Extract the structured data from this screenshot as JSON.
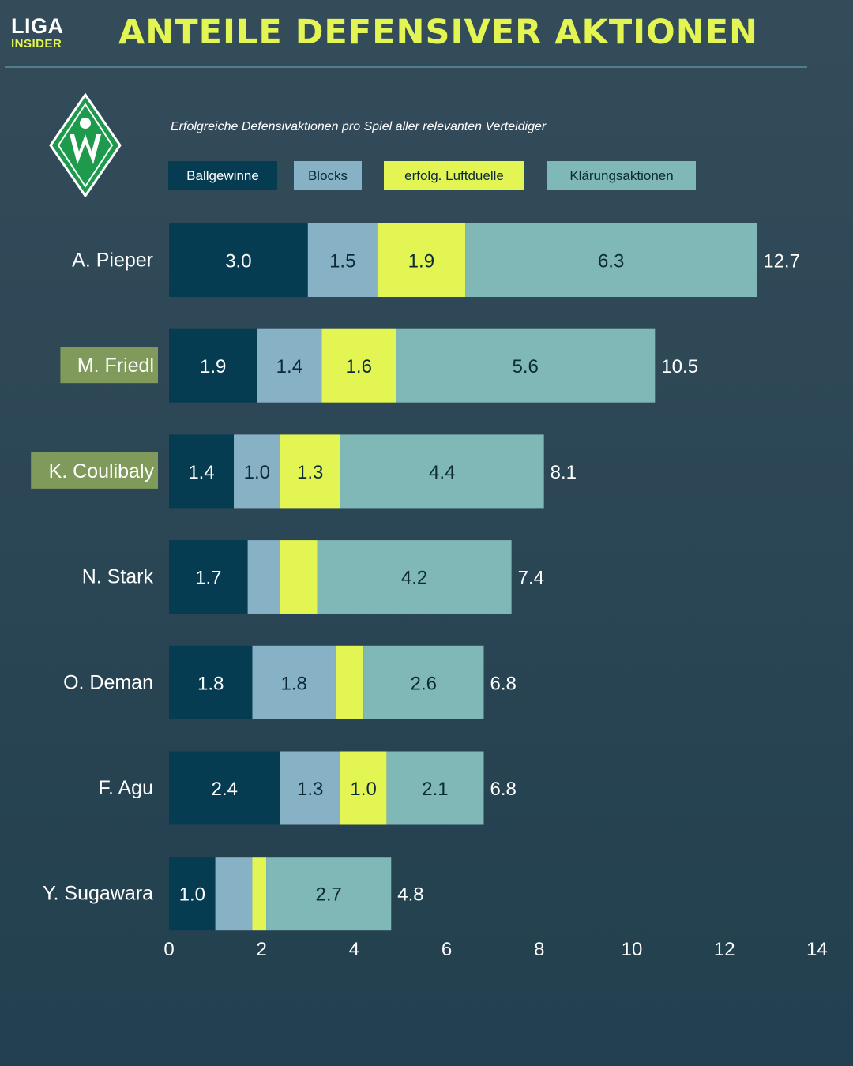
{
  "brand": {
    "line1": "LIGA",
    "line2": "INSIDER"
  },
  "header": {
    "title": "ANTEILE DEFENSIVER AKTIONEN"
  },
  "crest": {
    "icon": "werder-bremen-crest-icon",
    "color": "#1d9a4c"
  },
  "colors": {
    "ballgewinne": "#053c51",
    "blocks": "#87b2c5",
    "luftduelle": "#e3f553",
    "klaerung": "#80b8b7",
    "highlight": "#7f9a5b",
    "accent": "#e3f553"
  },
  "chart_data": {
    "type": "bar",
    "orientation": "horizontal",
    "stacked": true,
    "subtitle": "Erfolgreiche Defensivaktionen pro Spiel aller relevanten Verteidiger",
    "categories": [
      "A. Pieper",
      "M. Friedl",
      "K. Coulibaly",
      "N. Stark",
      "O. Deman",
      "F. Agu",
      "Y. Sugawara"
    ],
    "highlighted": [
      "M. Friedl",
      "K. Coulibaly"
    ],
    "series": [
      {
        "name": "Ballgewinne",
        "values": [
          3.0,
          1.9,
          1.4,
          1.7,
          1.8,
          2.4,
          1.0
        ],
        "labels": [
          "3.0",
          "1.9",
          "1.4",
          "1.7",
          "1.8",
          "2.4",
          "1.0"
        ]
      },
      {
        "name": "Blocks",
        "values": [
          1.5,
          1.4,
          1.0,
          0.7,
          1.8,
          1.3,
          0.8
        ],
        "labels": [
          "1.5",
          "1.4",
          "1.0",
          "",
          "1.8",
          "1.3",
          ""
        ]
      },
      {
        "name": "erfolg. Luftduelle",
        "values": [
          1.9,
          1.6,
          1.3,
          0.8,
          0.6,
          1.0,
          0.3
        ],
        "labels": [
          "1.9",
          "1.6",
          "1.3",
          "",
          "",
          "1.0",
          ""
        ]
      },
      {
        "name": "Klärungsaktionen",
        "values": [
          6.3,
          5.6,
          4.4,
          4.2,
          2.6,
          2.1,
          2.7
        ],
        "labels": [
          "6.3",
          "5.6",
          "4.4",
          "4.2",
          "2.6",
          "2.1",
          "2.7"
        ]
      }
    ],
    "totals": [
      "12.7",
      "10.5",
      "8.1",
      "7.4",
      "6.8",
      "6.8",
      "4.8"
    ],
    "xlim": [
      0,
      14
    ],
    "xticks": [
      "0",
      "2",
      "4",
      "6",
      "8",
      "10",
      "12",
      "14"
    ],
    "grid": false,
    "legend": "top"
  }
}
